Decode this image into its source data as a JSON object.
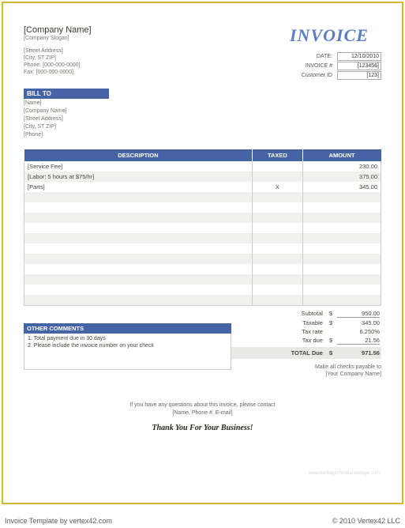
{
  "company": {
    "name": "[Company Name]",
    "slogan": "[Company Slogan]",
    "street": "[Street Address]",
    "cityzip": "[City, ST  ZIP]",
    "phone": "Phone: [000-000-0000]",
    "fax": "Fax: [000-000-0000]"
  },
  "title": "INVOICE",
  "meta": {
    "date_label": "DATE:",
    "date": "12/10/2010",
    "invnum_label": "INVOICE #",
    "invnum": "[123456]",
    "custid_label": "Customer ID",
    "custid": "[123]"
  },
  "billto": {
    "heading": "BILL TO",
    "name": "[Name]",
    "company": "[Company Name]",
    "street": "[Street Address]",
    "cityzip": "[City, ST  ZIP]",
    "phone": "[Phone]"
  },
  "columns": {
    "desc": "DESCRIPTION",
    "taxed": "TAXED",
    "amount": "AMOUNT"
  },
  "items": [
    {
      "desc": "[Service Fee]",
      "taxed": "",
      "amount": "230.00"
    },
    {
      "desc": "[Labor: 5 hours at $75/hr]",
      "taxed": "",
      "amount": "375.00"
    },
    {
      "desc": "[Parts]",
      "taxed": "X",
      "amount": "345.00"
    }
  ],
  "comments": {
    "heading": "OTHER COMMENTS",
    "l1": "1. Total payment due in 30 days",
    "l2": "2. Please include the invoice number on your check"
  },
  "totals": {
    "subtotal_label": "Subtotal",
    "subtotal": "950.00",
    "taxable_label": "Taxable",
    "taxable": "345.00",
    "taxrate_label": "Tax rate",
    "taxrate": "6.250%",
    "taxdue_label": "Tax due",
    "taxdue": "21.56",
    "total_label": "TOTAL Due",
    "total": "971.56",
    "cur": "$"
  },
  "payable": {
    "l1": "Make all checks payable to",
    "l2": "[Your Company Name]"
  },
  "contact": {
    "l1": "If you have any questions about this invoice, please contact",
    "l2": "[Name, Phone #, E-mail]"
  },
  "thanks": "Thank You For Your Business!",
  "watermark": "www.heritagechristiancollege.com",
  "footer": {
    "left": "Invoice Template by vertex42.com",
    "right": "© 2010 Vertex42 LLC"
  },
  "colors": {
    "header_blue": "#4663a6",
    "title_blue": "#5a7fc7",
    "frame_border": "#d4b831",
    "stripe": "#f0f0ee"
  }
}
